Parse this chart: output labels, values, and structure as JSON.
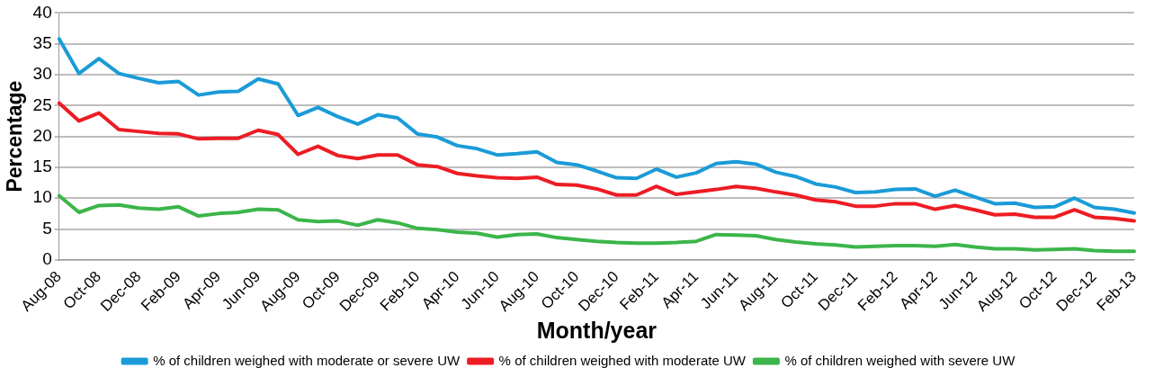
{
  "chart_data": {
    "type": "line",
    "xlabel": "Month/year",
    "ylabel": "Percentage",
    "categories": [
      "Aug-08",
      null,
      "Oct-08",
      null,
      "Dec-08",
      null,
      "Feb-09",
      null,
      "Apr-09",
      null,
      "Jun-09",
      null,
      "Aug-09",
      null,
      "Oct-09",
      null,
      "Dec-09",
      null,
      "Feb-10",
      null,
      "Apr-10",
      null,
      "Jun-10",
      null,
      "Aug-10",
      null,
      "Oct-10",
      null,
      "Dec-10",
      null,
      "Feb-11",
      null,
      "Apr-11",
      null,
      "Jun-11",
      null,
      "Aug-11",
      null,
      "Oct-11",
      null,
      "Dec-11",
      null,
      "Feb-12",
      null,
      "Apr-12",
      null,
      "Jun-12",
      null,
      "Aug-12",
      null,
      "Oct-12",
      null,
      "Dec-12",
      null,
      "Feb-13"
    ],
    "series": [
      {
        "name": "% of children weighed with moderate or severe UW",
        "color": "#1a9bd7",
        "values": [
          35.8,
          30.2,
          32.6,
          30.2,
          29.4,
          28.7,
          28.9,
          26.7,
          27.2,
          27.3,
          29.3,
          28.5,
          23.4,
          24.7,
          23.2,
          22.0,
          23.5,
          23.0,
          20.4,
          19.9,
          18.5,
          18.0,
          17.0,
          17.2,
          17.5,
          15.8,
          15.4,
          14.4,
          13.3,
          13.2,
          14.7,
          13.4,
          14.1,
          15.6,
          15.9,
          15.5,
          14.2,
          13.5,
          12.3,
          11.8,
          10.9,
          11.0,
          11.4,
          11.5,
          10.3,
          11.3,
          10.2,
          9.1,
          9.2,
          8.5,
          8.6,
          10.0,
          8.5,
          8.2,
          7.6
        ]
      },
      {
        "name": "% of children weighed with moderate UW",
        "color": "#ed1c24",
        "values": [
          25.4,
          22.5,
          23.8,
          21.1,
          20.8,
          20.5,
          20.4,
          19.6,
          19.7,
          19.7,
          21.0,
          20.3,
          17.1,
          18.4,
          16.9,
          16.4,
          17.0,
          17.0,
          15.4,
          15.1,
          14.0,
          13.6,
          13.3,
          13.2,
          13.4,
          12.2,
          12.1,
          11.5,
          10.5,
          10.5,
          11.9,
          10.6,
          11.0,
          11.4,
          11.9,
          11.6,
          11.0,
          10.5,
          9.7,
          9.4,
          8.7,
          8.7,
          9.1,
          9.1,
          8.2,
          8.8,
          8.1,
          7.3,
          7.4,
          6.9,
          6.9,
          8.1,
          6.9,
          6.7,
          6.3
        ]
      },
      {
        "name": "% of children weighed with severe UW",
        "color": "#3cb54a",
        "values": [
          10.4,
          7.7,
          8.8,
          8.9,
          8.4,
          8.2,
          8.6,
          7.1,
          7.5,
          7.7,
          8.2,
          8.1,
          6.5,
          6.2,
          6.3,
          5.6,
          6.5,
          6.0,
          5.1,
          4.9,
          4.5,
          4.3,
          3.7,
          4.1,
          4.2,
          3.6,
          3.3,
          3.0,
          2.8,
          2.7,
          2.7,
          2.8,
          3.0,
          4.1,
          4.0,
          3.9,
          3.3,
          2.9,
          2.6,
          2.4,
          2.1,
          2.2,
          2.3,
          2.3,
          2.2,
          2.5,
          2.1,
          1.8,
          1.8,
          1.6,
          1.7,
          1.8,
          1.5,
          1.4,
          1.4
        ]
      }
    ],
    "ylim": [
      0,
      40
    ],
    "yticks": [
      0,
      5,
      10,
      15,
      20,
      25,
      30,
      35,
      40
    ],
    "grid": "y",
    "legend": "bottom",
    "marker": "none",
    "line_style": "solid"
  }
}
